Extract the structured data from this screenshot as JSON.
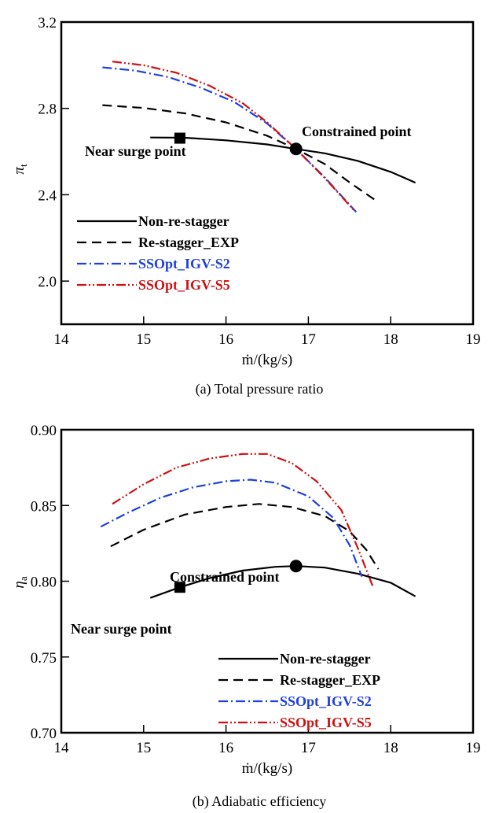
{
  "chart_data": [
    {
      "type": "line",
      "caption": "(a) Total pressure ratio",
      "xlabel": "ṁ/(kg/s)",
      "ylabel": "π",
      "ylabel_sub": "t",
      "xlim": [
        14,
        19
      ],
      "ylim": [
        1.8,
        3.2
      ],
      "xticks": [
        "14",
        "15",
        "16",
        "17",
        "18",
        "19"
      ],
      "yticks": [
        {
          "v": 2.0,
          "label": "2.0"
        },
        {
          "v": 2.4,
          "label": "2.4"
        },
        {
          "v": 2.8,
          "label": "2.8"
        },
        {
          "v": 3.2,
          "label": "3.2"
        }
      ],
      "grid": false,
      "legend_position": "bottom-left",
      "series": [
        {
          "name": "Non-re-stagger",
          "color": "#000000",
          "dash": "solid",
          "points": [
            [
              15.08,
              2.665
            ],
            [
              15.5,
              2.664
            ],
            [
              16.0,
              2.652
            ],
            [
              16.5,
              2.633
            ],
            [
              16.85,
              2.612
            ],
            [
              17.2,
              2.592
            ],
            [
              17.6,
              2.557
            ],
            [
              18.0,
              2.506
            ],
            [
              18.3,
              2.456
            ]
          ]
        },
        {
          "name": "Re-stagger_EXP",
          "color": "#000000",
          "dash": "dash",
          "points": [
            [
              14.5,
              2.815
            ],
            [
              15.0,
              2.802
            ],
            [
              15.5,
              2.777
            ],
            [
              16.0,
              2.735
            ],
            [
              16.5,
              2.673
            ],
            [
              16.85,
              2.612
            ],
            [
              17.2,
              2.542
            ],
            [
              17.5,
              2.457
            ],
            [
              17.85,
              2.365
            ]
          ]
        },
        {
          "name": "SSOpt_IGV-S2",
          "color": "#1f3fe0",
          "dash": "dashdot",
          "points": [
            [
              14.5,
              2.99
            ],
            [
              14.9,
              2.975
            ],
            [
              15.3,
              2.945
            ],
            [
              15.7,
              2.895
            ],
            [
              16.1,
              2.83
            ],
            [
              16.5,
              2.73
            ],
            [
              16.85,
              2.612
            ],
            [
              17.2,
              2.48
            ],
            [
              17.58,
              2.32
            ]
          ]
        },
        {
          "name": "SSOpt_IGV-S5",
          "color": "#d01010",
          "dash": "dashdotdot",
          "points": [
            [
              14.62,
              3.017
            ],
            [
              15.0,
              3.0
            ],
            [
              15.4,
              2.965
            ],
            [
              15.8,
              2.905
            ],
            [
              16.2,
              2.825
            ],
            [
              16.5,
              2.735
            ],
            [
              16.85,
              2.612
            ],
            [
              17.2,
              2.477
            ],
            [
              17.55,
              2.33
            ]
          ]
        }
      ],
      "markers": [
        {
          "kind": "square",
          "x": 15.44,
          "y": 2.662,
          "label": "Near surge point"
        },
        {
          "kind": "circle",
          "x": 16.85,
          "y": 2.612,
          "label": "Constrained point"
        }
      ]
    },
    {
      "type": "line",
      "caption": "(b) Adiabatic efficiency",
      "xlabel": "ṁ/(kg/s)",
      "ylabel": "η",
      "ylabel_sub": "a",
      "xlim": [
        14,
        19
      ],
      "ylim": [
        0.7,
        0.9
      ],
      "xticks": [
        "14",
        "15",
        "16",
        "17",
        "18",
        "19"
      ],
      "yticks": [
        {
          "v": 0.7,
          "label": "0.70"
        },
        {
          "v": 0.75,
          "label": "0.75"
        },
        {
          "v": 0.8,
          "label": "0.80"
        },
        {
          "v": 0.85,
          "label": "0.85"
        },
        {
          "v": 0.9,
          "label": "0.90"
        }
      ],
      "grid": false,
      "legend_position": "bottom-right",
      "series": [
        {
          "name": "Non-re-stagger",
          "color": "#000000",
          "dash": "solid",
          "points": [
            [
              15.08,
              0.789
            ],
            [
              15.44,
              0.796
            ],
            [
              15.8,
              0.802
            ],
            [
              16.2,
              0.807
            ],
            [
              16.6,
              0.8095
            ],
            [
              16.85,
              0.81
            ],
            [
              17.2,
              0.809
            ],
            [
              17.6,
              0.805
            ],
            [
              18.0,
              0.799
            ],
            [
              18.3,
              0.79
            ]
          ]
        },
        {
          "name": "Re-stagger_EXP",
          "color": "#000000",
          "dash": "dash",
          "points": [
            [
              14.6,
              0.823
            ],
            [
              15.0,
              0.834
            ],
            [
              15.5,
              0.844
            ],
            [
              16.0,
              0.849
            ],
            [
              16.4,
              0.851
            ],
            [
              16.8,
              0.849
            ],
            [
              17.2,
              0.843
            ],
            [
              17.5,
              0.833
            ],
            [
              17.7,
              0.821
            ],
            [
              17.85,
              0.808
            ]
          ]
        },
        {
          "name": "SSOpt_IGV-S2",
          "color": "#1f3fe0",
          "dash": "dashdot",
          "points": [
            [
              14.48,
              0.836
            ],
            [
              14.8,
              0.845
            ],
            [
              15.2,
              0.855
            ],
            [
              15.6,
              0.862
            ],
            [
              16.0,
              0.866
            ],
            [
              16.3,
              0.867
            ],
            [
              16.6,
              0.865
            ],
            [
              17.0,
              0.856
            ],
            [
              17.3,
              0.842
            ],
            [
              17.5,
              0.824
            ],
            [
              17.65,
              0.803
            ]
          ]
        },
        {
          "name": "SSOpt_IGV-S5",
          "color": "#d01010",
          "dash": "dashdotdot",
          "points": [
            [
              14.62,
              0.851
            ],
            [
              15.0,
              0.864
            ],
            [
              15.4,
              0.875
            ],
            [
              15.8,
              0.881
            ],
            [
              16.2,
              0.884
            ],
            [
              16.5,
              0.884
            ],
            [
              16.8,
              0.878
            ],
            [
              17.1,
              0.866
            ],
            [
              17.4,
              0.847
            ],
            [
              17.6,
              0.822
            ],
            [
              17.78,
              0.797
            ]
          ]
        }
      ],
      "markers": [
        {
          "kind": "square",
          "x": 15.44,
          "y": 0.796,
          "label": "Near surge point"
        },
        {
          "kind": "circle",
          "x": 16.85,
          "y": 0.81,
          "label": "Constrained point"
        }
      ]
    }
  ]
}
